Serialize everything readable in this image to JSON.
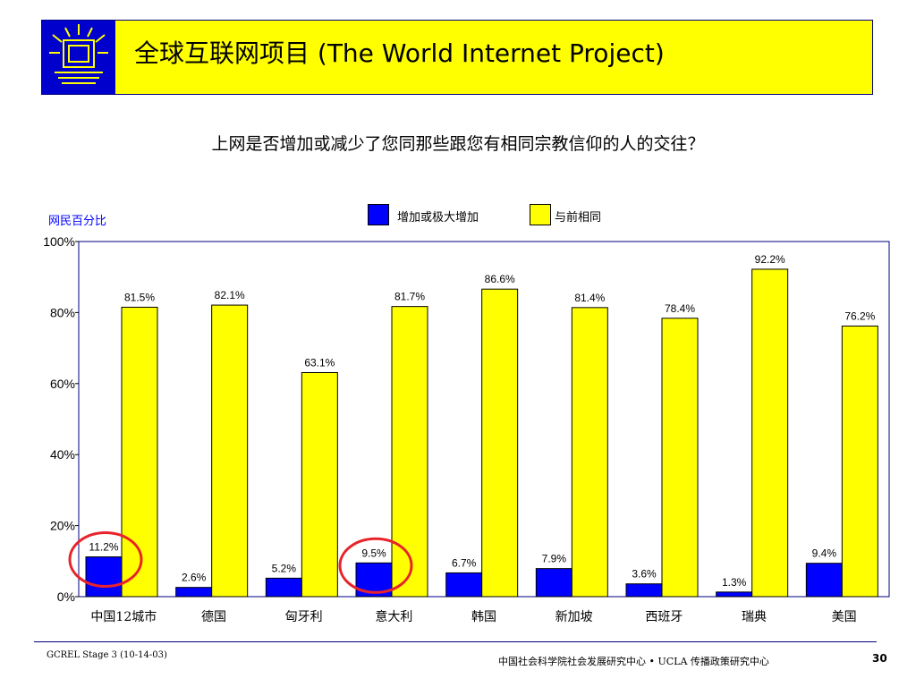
{
  "header": {
    "title": "全球互联网项目 (The World Internet Project)"
  },
  "question": "上网是否增加或减少了您同那些跟您有相同宗教信仰的人的交往？",
  "y_axis_title": "网民百分比",
  "colors": {
    "series_increase": "#0000ff",
    "series_same": "#ffff00",
    "circle": "#e8232a",
    "axis_frame": "#000080"
  },
  "chart_data": {
    "type": "bar",
    "ylabel": "网民百分比",
    "ylim": [
      0,
      100
    ],
    "yticks": [
      "0%",
      "20%",
      "40%",
      "60%",
      "80%",
      "100%"
    ],
    "categories": [
      "中国12城市",
      "德国",
      "匈牙利",
      "意大利",
      "韩国",
      "新加坡",
      "西班牙",
      "瑞典",
      "美国"
    ],
    "series": [
      {
        "name": "增加或极大增加",
        "values": [
          11.2,
          2.6,
          5.2,
          9.5,
          6.7,
          7.9,
          3.6,
          1.3,
          9.4
        ],
        "labels": [
          "11.2%",
          "2.6%",
          "5.2%",
          "9.5%",
          "6.7%",
          "7.9%",
          "3.6%",
          "1.3%",
          "9.4%"
        ]
      },
      {
        "name": "与前相同",
        "values": [
          81.5,
          82.1,
          63.1,
          81.7,
          86.6,
          81.4,
          78.4,
          92.2,
          76.2
        ],
        "labels": [
          "81.5%",
          "82.1%",
          "63.1%",
          "81.7%",
          "86.6%",
          "81.4%",
          "78.4%",
          "92.2%",
          "76.2%"
        ]
      }
    ],
    "highlighted_categories": [
      "中国12城市",
      "意大利"
    ],
    "legend_position": "top-center",
    "grid": false
  },
  "footer": {
    "left": "GCREL Stage 3 (10-14-03)",
    "center": "中国社会科学院社会发展研究中心 • UCLA 传播政策研究中心",
    "page_number": "30"
  }
}
